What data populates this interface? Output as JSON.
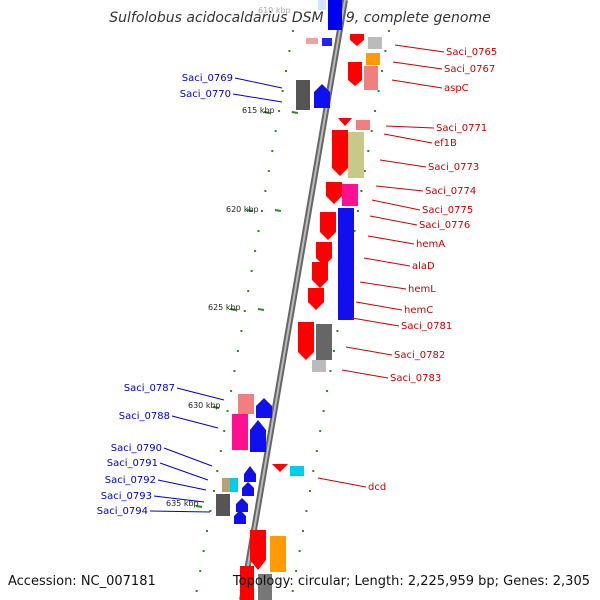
{
  "title": "Sulfolobus acidocaldarius DSM 639, complete genome",
  "top_partial_label": "610 kbp",
  "footer": {
    "accession": "Accession: NC_007181",
    "topology": "Topology: circular; Length: 2,225,959 bp; Genes: 2,305"
  },
  "scale_labels": [
    "615 kbp",
    "620 kbp",
    "625 kbp",
    "630 kbp",
    "635 kbp"
  ],
  "right_genes": [
    "Saci_0765",
    "Saci_0767",
    "aspC",
    "Saci_0771",
    "ef1B",
    "Saci_0773",
    "Saci_0774",
    "Saci_0775",
    "Saci_0776",
    "hemA",
    "alaD",
    "hemL",
    "hemC",
    "Saci_0781",
    "Saci_0782",
    "Saci_0783",
    "dcd"
  ],
  "left_genes": [
    "Saci_0769",
    "Saci_0770",
    "Saci_0787",
    "Saci_0788",
    "Saci_0790",
    "Saci_0791",
    "Saci_0792",
    "Saci_0793",
    "Saci_0794"
  ],
  "colors": {
    "forward": "#ff0000",
    "reverse": "#0000ff",
    "label_right": "#cc0000",
    "label_left": "#0000cc",
    "tick": "#2a8a2a"
  }
}
